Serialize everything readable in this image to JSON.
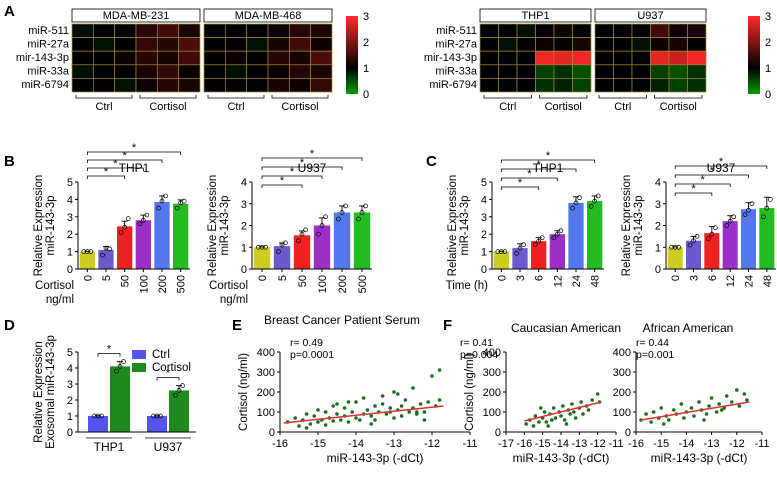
{
  "panels": {
    "a": "A",
    "b": "B",
    "c": "C",
    "d": "D",
    "e": "E",
    "f": "F"
  },
  "colors": {
    "ctrl_yellow": "#cccc22",
    "g5": "#6a5acd",
    "g50": "#ee2222",
    "g100": "#9b30c8",
    "g200": "#5577ee",
    "g500": "#22bb22",
    "ctrl_blue": "#5555ee",
    "cortisol_green": "#1e8a1e",
    "scatter_pt": "#1a6e1a",
    "fit_line": "#e03030"
  },
  "chart_data": [
    {
      "type": "heatmap",
      "id": "A1",
      "rows": [
        "miR-511",
        "miR-27a",
        "mir-143-3p",
        "miR-33a",
        "miR-6794"
      ],
      "columns": [
        "MDA-MB-231",
        "MDA-MB-468"
      ],
      "group_labels": [
        "Ctrl",
        "Cortisol",
        "Ctrl",
        "Cortisol"
      ],
      "colorbar": {
        "min": 0,
        "max": 3,
        "ticks": [
          "3",
          "2",
          "1",
          "0"
        ]
      },
      "values": [
        [
          0.9,
          1.0,
          1.0,
          1.3,
          1.5,
          1.2,
          1.0,
          1.0,
          1.0,
          1.1,
          1.3,
          1.2
        ],
        [
          1.0,
          0.9,
          1.0,
          1.4,
          1.3,
          1.6,
          1.0,
          1.0,
          0.9,
          1.2,
          1.5,
          1.1
        ],
        [
          1.0,
          1.0,
          1.1,
          1.3,
          1.2,
          1.5,
          1.0,
          1.1,
          1.0,
          1.3,
          1.2,
          1.6
        ],
        [
          0.9,
          1.0,
          1.0,
          1.2,
          1.4,
          1.1,
          1.0,
          0.9,
          1.0,
          1.1,
          1.3,
          1.2
        ],
        [
          1.0,
          1.0,
          0.9,
          1.1,
          1.3,
          1.2,
          1.0,
          1.0,
          1.0,
          1.2,
          1.1,
          1.4
        ]
      ]
    },
    {
      "type": "heatmap",
      "id": "A2",
      "rows": [
        "miR-511",
        "miR-27a",
        "mir-143-3p",
        "miR-33a",
        "miR-6794"
      ],
      "columns": [
        "THP1",
        "U937"
      ],
      "group_labels": [
        "Ctrl",
        "Cortisol",
        "Ctrl",
        "Cortisol"
      ],
      "colorbar": {
        "min": 0,
        "max": 3,
        "ticks": [
          "3",
          "2",
          "1",
          "0"
        ]
      },
      "values": [
        [
          1.0,
          1.0,
          0.9,
          1.0,
          1.1,
          1.0,
          1.0,
          1.0,
          1.0,
          1.5,
          1.1,
          1.2
        ],
        [
          1.0,
          0.9,
          1.0,
          1.1,
          1.0,
          1.2,
          1.0,
          1.0,
          0.9,
          1.1,
          1.2,
          1.0
        ],
        [
          1.0,
          1.0,
          1.0,
          2.9,
          2.8,
          2.9,
          1.0,
          1.0,
          1.0,
          2.8,
          2.6,
          2.9
        ],
        [
          1.0,
          1.0,
          1.0,
          0.6,
          0.7,
          0.5,
          1.0,
          1.0,
          1.0,
          0.6,
          0.5,
          0.7
        ],
        [
          1.0,
          1.0,
          1.0,
          0.7,
          0.8,
          0.6,
          1.0,
          1.0,
          1.0,
          0.8,
          0.6,
          0.7
        ]
      ]
    },
    {
      "type": "bar",
      "id": "B1",
      "title": "THP1",
      "ylabel": [
        "Relative Expression",
        "miR-143-3p"
      ],
      "xlabel": "Cortisol",
      "xunit": "ng/ml",
      "categories": [
        "0",
        "5",
        "50",
        "100",
        "200",
        "500"
      ],
      "values": [
        1.0,
        1.1,
        2.45,
        2.8,
        3.85,
        3.75
      ],
      "errors": [
        0.02,
        0.2,
        0.3,
        0.3,
        0.35,
        0.22
      ],
      "points": [
        [
          1,
          1,
          1
        ],
        [
          0.8,
          1.2,
          1.15
        ],
        [
          2.1,
          2.4,
          2.9
        ],
        [
          2.6,
          2.8,
          3.1
        ],
        [
          3.5,
          3.9,
          4.2
        ],
        [
          3.5,
          3.8,
          3.9
        ]
      ],
      "ylim": [
        0,
        5
      ],
      "yticks": [
        "0",
        "1",
        "2",
        "3",
        "4",
        "5"
      ],
      "sig_brackets": [
        {
          "to": 2,
          "label": "*"
        },
        {
          "to": 3,
          "label": "*"
        },
        {
          "to": 4,
          "label": "*"
        },
        {
          "to": 5,
          "label": "*"
        }
      ]
    },
    {
      "type": "bar",
      "id": "B2",
      "title": "U937",
      "ylabel": [
        "Relative Expression",
        "miR-143-3p"
      ],
      "xlabel": "Cortisol",
      "xunit": "ng/ml",
      "categories": [
        "0",
        "5",
        "50",
        "100",
        "200",
        "500"
      ],
      "values": [
        1.0,
        1.05,
        1.55,
        2.0,
        2.6,
        2.6
      ],
      "errors": [
        0.02,
        0.15,
        0.2,
        0.35,
        0.3,
        0.3
      ],
      "points": [
        [
          1,
          1,
          1
        ],
        [
          0.8,
          1.1,
          1.2
        ],
        [
          1.3,
          1.6,
          1.8
        ],
        [
          1.6,
          2.0,
          2.4
        ],
        [
          2.3,
          2.6,
          2.9
        ],
        [
          2.3,
          2.6,
          2.9
        ]
      ],
      "ylim": [
        0,
        4
      ],
      "yticks": [
        "0",
        "1",
        "2",
        "3",
        "4"
      ],
      "sig_brackets": [
        {
          "to": 2,
          "label": "*"
        },
        {
          "to": 3,
          "label": "*"
        },
        {
          "to": 4,
          "label": "*"
        },
        {
          "to": 5,
          "label": "*"
        }
      ]
    },
    {
      "type": "bar",
      "id": "C1",
      "title": "THP1",
      "ylabel": [
        "Relative Expression",
        "miR-143-3p"
      ],
      "xlabel": "Time (h)",
      "categories": [
        "0",
        "3",
        "6",
        "12",
        "24",
        "48"
      ],
      "values": [
        1.0,
        1.2,
        1.6,
        2.0,
        3.8,
        3.9
      ],
      "errors": [
        0.02,
        0.25,
        0.2,
        0.2,
        0.35,
        0.3
      ],
      "points": [
        [
          1,
          1,
          1
        ],
        [
          0.9,
          1.2,
          1.4
        ],
        [
          1.4,
          1.6,
          1.8
        ],
        [
          1.8,
          2.0,
          2.2
        ],
        [
          3.5,
          3.8,
          4.1
        ],
        [
          3.6,
          3.9,
          4.2
        ]
      ],
      "ylim": [
        0,
        5
      ],
      "yticks": [
        "0",
        "1",
        "2",
        "3",
        "4",
        "5"
      ],
      "sig_brackets": [
        {
          "to": 2,
          "label": "*"
        },
        {
          "to": 3,
          "label": "*"
        },
        {
          "to": 4,
          "label": "*"
        },
        {
          "to": 5,
          "label": "*"
        }
      ]
    },
    {
      "type": "bar",
      "id": "C2",
      "title": "U937",
      "ylabel": [
        "Relative Expression",
        "miR-143-3p"
      ],
      "xlabel": "",
      "categories": [
        "0",
        "3",
        "6",
        "12",
        "24",
        "48"
      ],
      "values": [
        1.0,
        1.3,
        1.65,
        2.2,
        2.75,
        2.8
      ],
      "errors": [
        0.02,
        0.2,
        0.3,
        0.25,
        0.3,
        0.5
      ],
      "points": [
        [
          1,
          1,
          1
        ],
        [
          1.1,
          1.3,
          1.5
        ],
        [
          1.4,
          1.6,
          1.9
        ],
        [
          2.0,
          2.2,
          2.4
        ],
        [
          2.5,
          2.7,
          3.0
        ],
        [
          2.4,
          2.8,
          3.2
        ]
      ],
      "ylim": [
        0,
        4
      ],
      "yticks": [
        "0",
        "1",
        "2",
        "3",
        "4"
      ],
      "sig_brackets": [
        {
          "to": 2,
          "label": "*"
        },
        {
          "to": 3,
          "label": "*"
        },
        {
          "to": 4,
          "label": "*"
        },
        {
          "to": 5,
          "label": "*"
        }
      ]
    },
    {
      "type": "bar",
      "id": "D",
      "ylabel": [
        "Relative Expression",
        "Exosomal miR-143-3p"
      ],
      "categories": [
        "THP1",
        "U937"
      ],
      "series": [
        {
          "name": "Ctrl",
          "values": [
            1.0,
            1.0
          ],
          "errors": [
            0.02,
            0.02
          ],
          "points": [
            [
              1,
              1,
              1
            ],
            [
              1,
              1,
              1
            ]
          ]
        },
        {
          "name": "Cortisol",
          "values": [
            4.1,
            2.6
          ],
          "errors": [
            0.3,
            0.3
          ],
          "points": [
            [
              3.8,
              4.1,
              4.4
            ],
            [
              2.3,
              2.6,
              2.9
            ]
          ]
        }
      ],
      "ylim": [
        0,
        5
      ],
      "yticks": [
        "0",
        "1",
        "2",
        "3",
        "4",
        "5"
      ],
      "sig": [
        "*",
        "*"
      ]
    },
    {
      "type": "scatter",
      "id": "E",
      "title": "Breast Cancer Patient Serum",
      "xlabel": "miR-143-3p (-dCt)",
      "ylabel": "Cortisol (ng/ml)",
      "stats": [
        "r= 0.49",
        "p=0.0001"
      ],
      "xlim": [
        -16,
        -11
      ],
      "xticks": [
        "-16",
        "-15",
        "-14",
        "-13",
        "-12",
        "-11"
      ],
      "ylim": [
        0,
        400
      ],
      "yticks": [
        "0",
        "100",
        "200",
        "300",
        "400"
      ],
      "fit": {
        "x": [
          -15.9,
          -11.7
        ],
        "y": [
          45,
          130
        ]
      },
      "x": [
        -15.8,
        -15.6,
        -15.5,
        -15.4,
        -15.3,
        -15.2,
        -15.1,
        -15.0,
        -15.0,
        -14.9,
        -14.8,
        -14.8,
        -14.7,
        -14.6,
        -14.5,
        -14.5,
        -14.4,
        -14.3,
        -14.3,
        -14.2,
        -14.1,
        -14.0,
        -14.0,
        -13.9,
        -13.8,
        -13.8,
        -13.7,
        -13.6,
        -13.5,
        -13.5,
        -13.4,
        -13.3,
        -13.3,
        -13.2,
        -13.1,
        -13.0,
        -13.0,
        -12.9,
        -12.8,
        -12.8,
        -12.7,
        -12.6,
        -12.5,
        -12.5,
        -12.4,
        -12.3,
        -12.2,
        -12.1,
        -12.0,
        -11.9,
        -11.8,
        -11.8,
        -13.6,
        -14.6,
        -12.2,
        -12.9,
        -15.3,
        -13.1,
        -14.2,
        -12.4
      ],
      "y": [
        50,
        70,
        30,
        60,
        90,
        40,
        80,
        50,
        110,
        60,
        100,
        35,
        70,
        55,
        90,
        140,
        60,
        120,
        80,
        50,
        100,
        70,
        150,
        60,
        90,
        170,
        110,
        80,
        130,
        60,
        100,
        140,
        180,
        90,
        120,
        70,
        200,
        110,
        130,
        80,
        160,
        100,
        120,
        220,
        90,
        140,
        100,
        150,
        280,
        130,
        160,
        310,
        40,
        130,
        60,
        190,
        20,
        100,
        150,
        100
      ]
    },
    {
      "type": "scatter",
      "id": "F1",
      "title": "Caucasian American",
      "xlabel": "miR-143-3p (-dCt)",
      "ylabel": "Cortisol (ng/ml)",
      "stats": [
        "r= 0.41",
        "p=0.004"
      ],
      "xlim": [
        -17,
        -11
      ],
      "xticks": [
        "-17",
        "-16",
        "-15",
        "-14",
        "-13",
        "-12",
        "-11"
      ],
      "ylim": [
        0,
        400
      ],
      "yticks": [
        "0",
        "100",
        "200",
        "300",
        "400"
      ],
      "fit": {
        "x": [
          -16,
          -11.8
        ],
        "y": [
          55,
          150
        ]
      },
      "x": [
        -15.9,
        -15.7,
        -15.5,
        -15.4,
        -15.2,
        -15.0,
        -14.9,
        -14.8,
        -14.6,
        -14.5,
        -14.4,
        -14.3,
        -14.1,
        -14.0,
        -13.9,
        -13.8,
        -13.6,
        -13.5,
        -13.4,
        -13.3,
        -13.2,
        -13.0,
        -12.9,
        -12.8,
        -12.6,
        -12.5,
        -12.3,
        -12.0,
        -11.9,
        -14.7,
        -13.7,
        -15.1
      ],
      "y": [
        40,
        60,
        30,
        80,
        50,
        70,
        100,
        50,
        90,
        60,
        120,
        70,
        100,
        80,
        130,
        60,
        110,
        90,
        140,
        100,
        70,
        120,
        150,
        90,
        130,
        110,
        160,
        190,
        150,
        30,
        40,
        120
      ]
    },
    {
      "type": "scatter",
      "id": "F2",
      "title": "African American",
      "xlabel": "miR-143-3p (-dCt)",
      "stats": [
        "r= 0.44",
        "p=0.001"
      ],
      "xlim": [
        -16,
        -11
      ],
      "xticks": [
        "-16",
        "-15",
        "-14",
        "-13",
        "-12",
        "-11"
      ],
      "ylim": [
        0,
        400
      ],
      "yticks": [
        "0",
        "100",
        "200",
        "300",
        "400"
      ],
      "fit": {
        "x": [
          -15.8,
          -11.5
        ],
        "y": [
          60,
          150
        ]
      },
      "x": [
        -15.8,
        -15.6,
        -15.4,
        -15.3,
        -15.1,
        -15.0,
        -14.8,
        -14.7,
        -14.5,
        -14.4,
        -14.2,
        -14.1,
        -14.0,
        -13.8,
        -13.7,
        -13.5,
        -13.4,
        -13.2,
        -13.1,
        -13.0,
        -12.8,
        -12.7,
        -12.5,
        -12.4,
        -12.2,
        -12.0,
        -11.9,
        -11.7,
        -11.6,
        -14.9,
        -13.3,
        -12.6
      ],
      "y": [
        60,
        90,
        50,
        100,
        70,
        120,
        80,
        60,
        110,
        90,
        140,
        70,
        100,
        120,
        80,
        150,
        110,
        90,
        130,
        170,
        100,
        140,
        120,
        180,
        150,
        210,
        130,
        190,
        160,
        40,
        60,
        110
      ]
    }
  ]
}
